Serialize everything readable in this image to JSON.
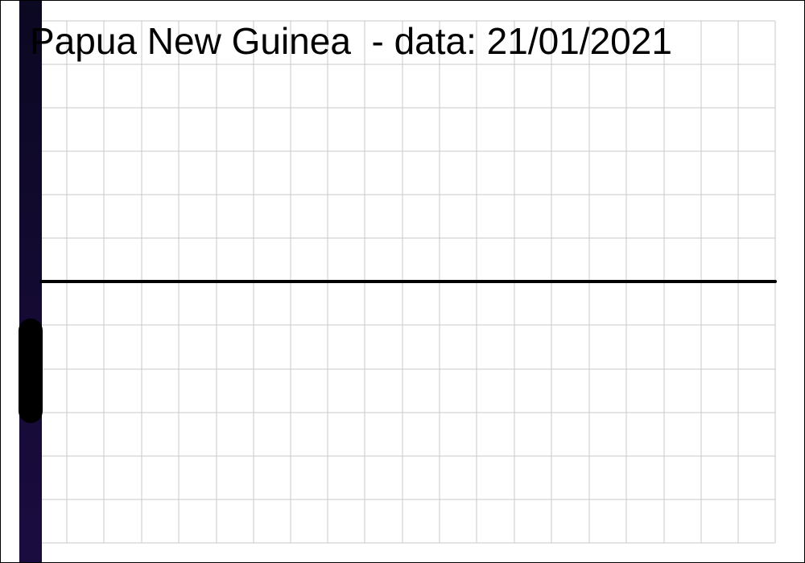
{
  "chart_data": {
    "type": "line",
    "title": "Papua New Guinea  - data: 21/01/2021",
    "xlabel": "",
    "ylabel": "",
    "grid": true,
    "legend": "none",
    "series": [
      {
        "color": "#000000"
      }
    ]
  },
  "colors": {
    "background": "#ffffff",
    "grid": "#c8c8c8",
    "line": "#000000",
    "left_band_top": "#0b0822",
    "left_band_bottom": "#1b0c40",
    "left_marker": "#000000"
  }
}
